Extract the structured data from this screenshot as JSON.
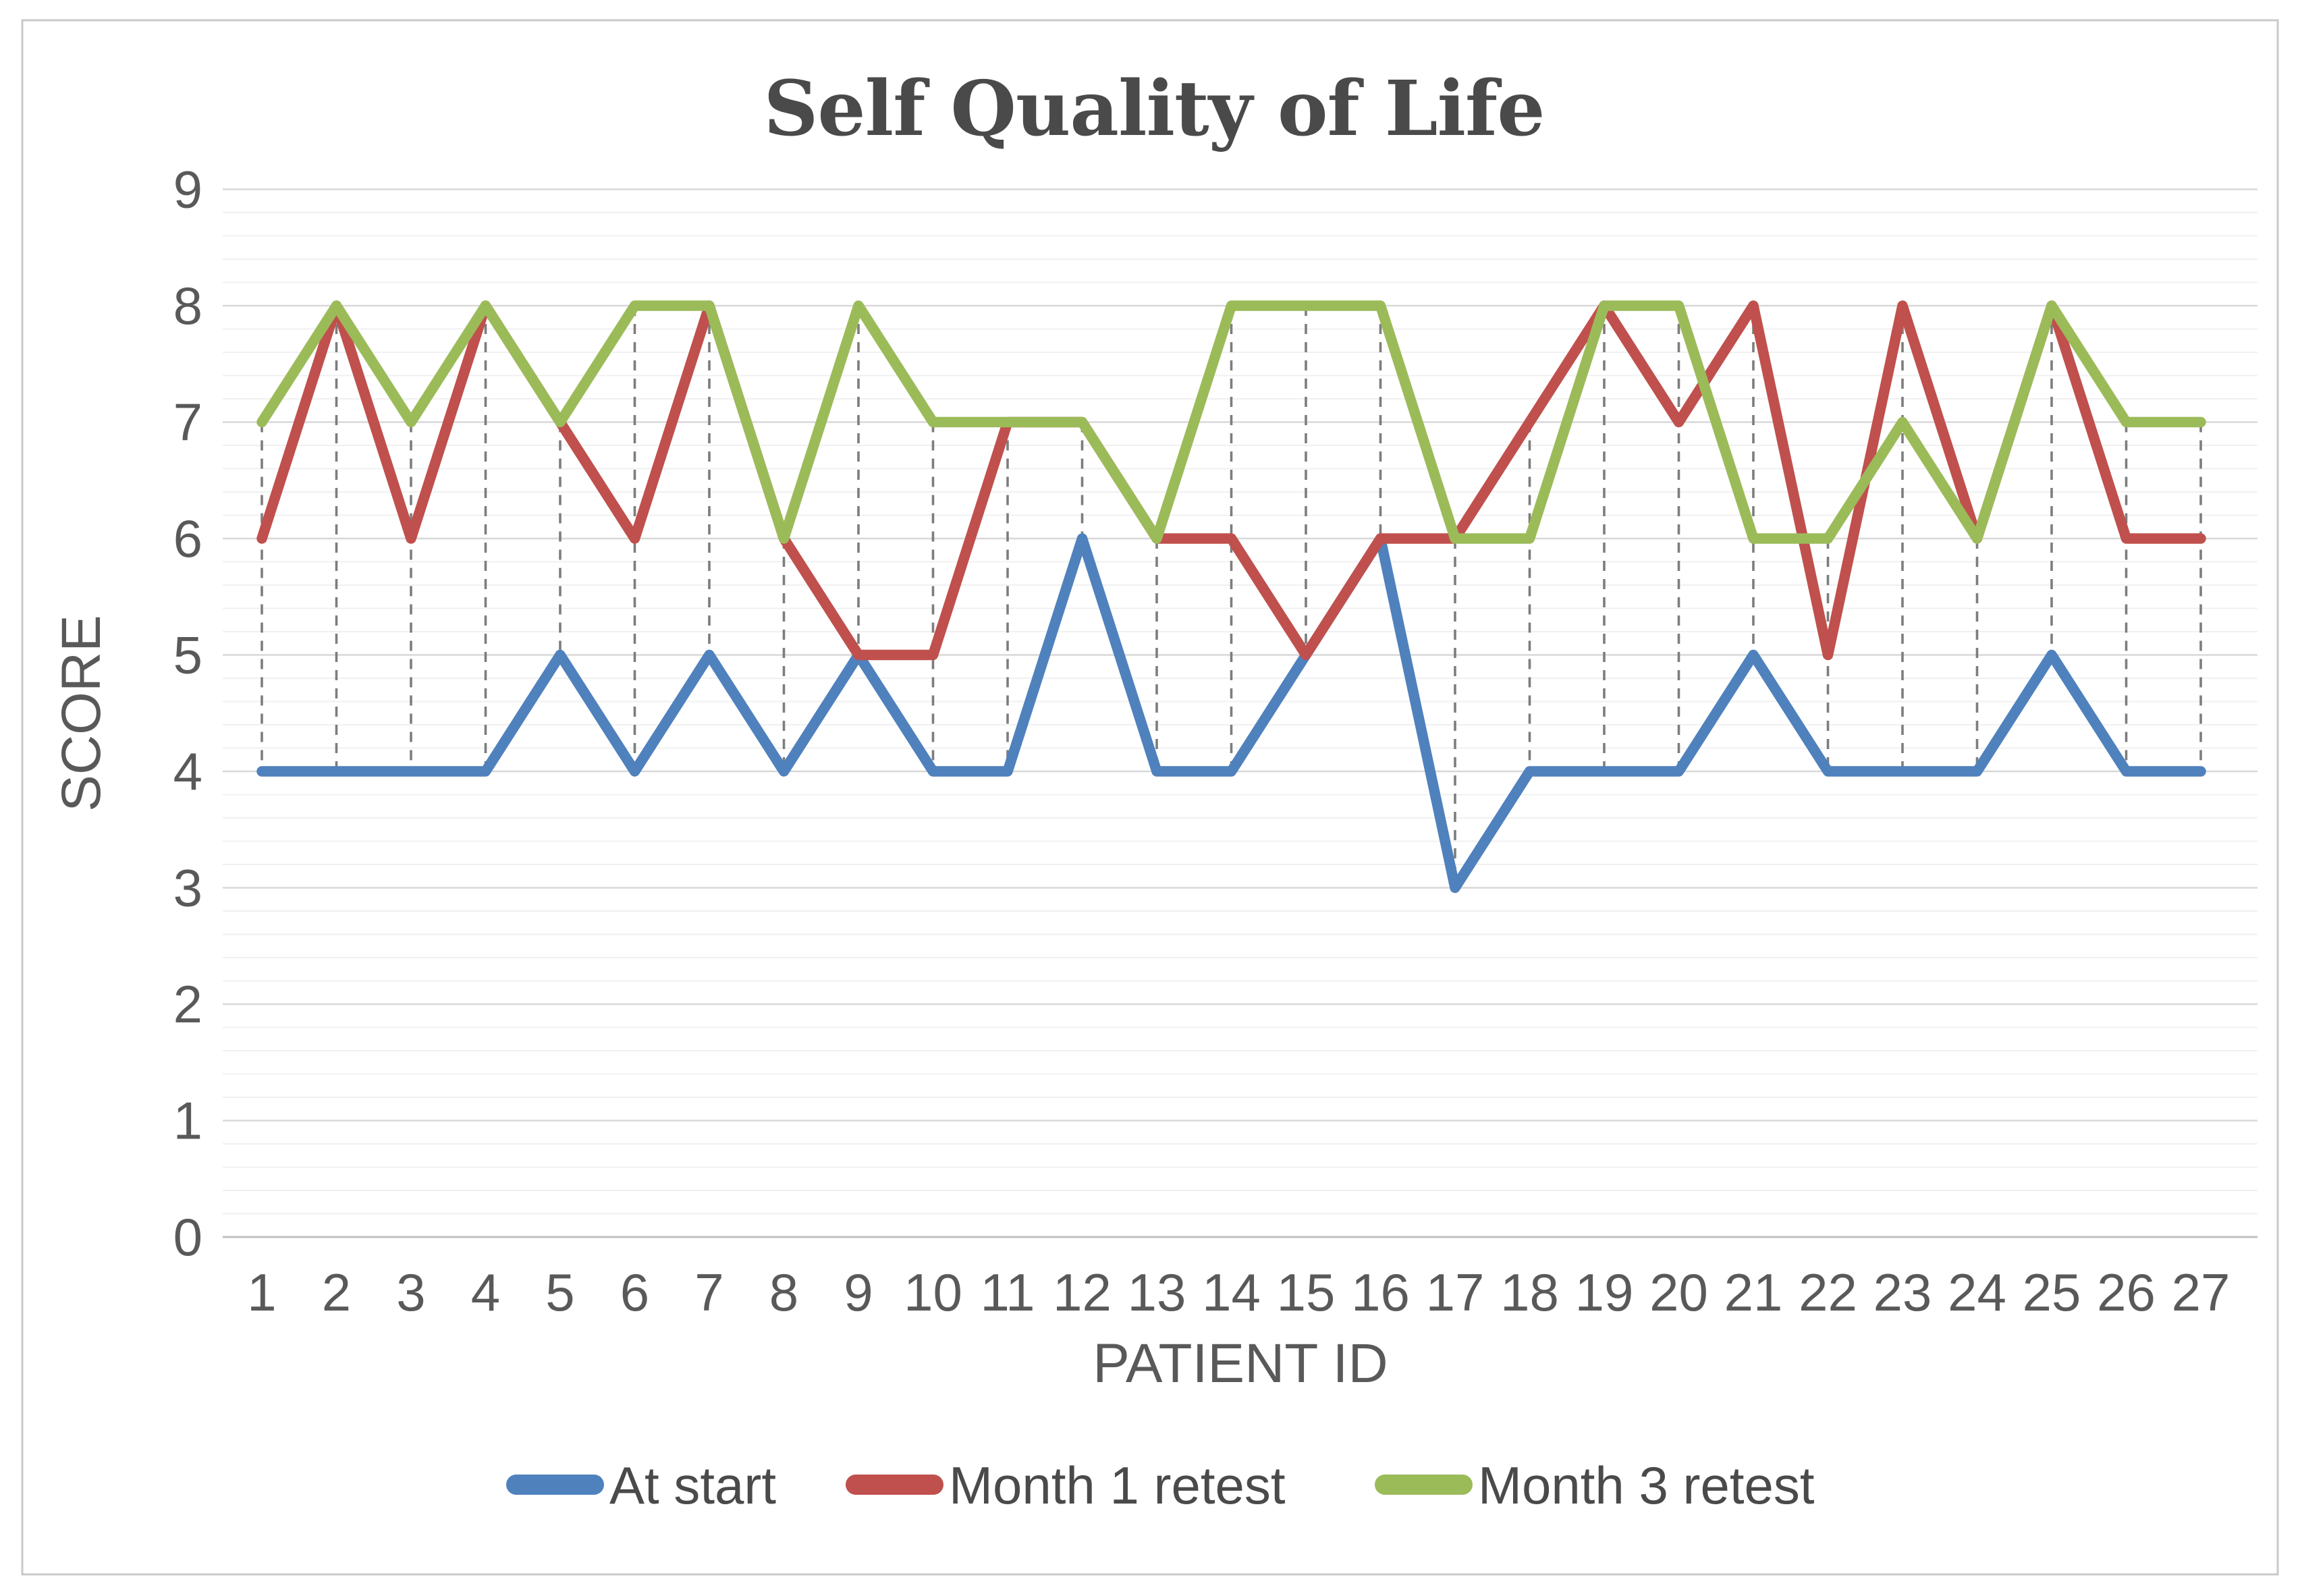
{
  "chart_data": {
    "type": "line",
    "title": "Self Quality of Life",
    "xlabel": "PATIENT ID",
    "ylabel": "SCORE",
    "x": [
      1,
      2,
      3,
      4,
      5,
      6,
      7,
      8,
      9,
      10,
      11,
      12,
      13,
      14,
      15,
      16,
      17,
      18,
      19,
      20,
      21,
      22,
      23,
      24,
      25,
      26,
      27
    ],
    "series": [
      {
        "name": "At start",
        "color": "#4F81BD",
        "values": [
          4,
          4,
          4,
          4,
          5,
          4,
          5,
          4,
          5,
          4,
          4,
          6,
          4,
          4,
          5,
          6,
          3,
          4,
          4,
          4,
          5,
          4,
          4,
          4,
          5,
          4,
          4
        ]
      },
      {
        "name": "Month 1 retest",
        "color": "#C0504D",
        "values": [
          6,
          8,
          6,
          8,
          7,
          6,
          8,
          6,
          5,
          5,
          7,
          7,
          6,
          6,
          5,
          6,
          6,
          7,
          8,
          7,
          8,
          5,
          8,
          6,
          8,
          6,
          6
        ]
      },
      {
        "name": "Month 3 retest",
        "color": "#9BBB59",
        "values": [
          7,
          8,
          7,
          8,
          7,
          8,
          8,
          6,
          8,
          7,
          7,
          7,
          6,
          8,
          8,
          8,
          6,
          6,
          8,
          8,
          6,
          6,
          7,
          6,
          8,
          7,
          7
        ]
      }
    ],
    "ylim": [
      0,
      9
    ],
    "y_major_ticks": [
      0,
      1,
      2,
      3,
      4,
      5,
      6,
      7,
      8,
      9
    ],
    "minor_grid_step": 0.2,
    "grid": "horizontal-major-and-minor",
    "high_low_lines": true,
    "legend_position": "bottom"
  },
  "style_colors": {
    "frame_border": "#c9c9c9",
    "major_grid": "#d8d8d8",
    "minor_grid": "#f0f0f0",
    "axis_line": "#bfbfbf",
    "high_low_line": "#7d7d7d",
    "text": "#595959"
  }
}
